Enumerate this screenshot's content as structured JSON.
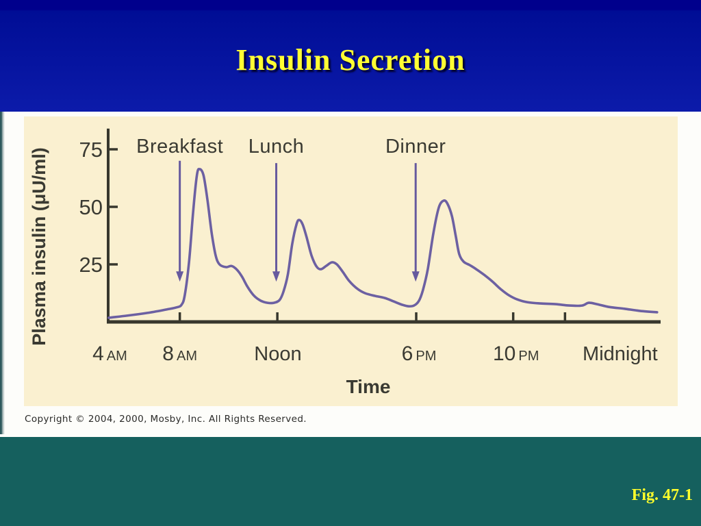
{
  "slide": {
    "title": "Insulin Secretion",
    "figure_ref": "Fig. 47-1",
    "copyright": "Copyright © 2004, 2000, Mosby, Inc. All Rights Reserved.",
    "colors": {
      "header_top": "#00008c",
      "header_bottom": "#0c1baa",
      "title_text": "#ffff33",
      "footer_teal": "#15605e",
      "fig_text": "#ffff2b",
      "panel_cream": "#faf0d0",
      "curve_purple": "#6c60a2",
      "arrow_purple": "#665a9e",
      "axis_dark": "#37372d",
      "label_dark": "#3a3a32"
    }
  },
  "chart_data": {
    "type": "line",
    "title": "",
    "xlabel": "Time",
    "ylabel": "Plasma insulin (μU/ml)",
    "ylim": [
      0,
      84
    ],
    "grid": false,
    "legend": "none",
    "y_axis": {
      "label": "Plasma insulin (μU/ml)",
      "ticks": [
        25,
        50,
        75
      ],
      "range": [
        0,
        84
      ]
    },
    "x_axis": {
      "label": "Time",
      "tick_positions": [
        0.13,
        0.307,
        0.559,
        0.735,
        0.829
      ],
      "tick_labels": [
        {
          "num": "4",
          "period": "AM",
          "pos": 0.003
        },
        {
          "num": "8",
          "period": "AM",
          "pos": 0.13
        },
        {
          "num": "Noon",
          "period": "",
          "pos": 0.308
        },
        {
          "num": "6",
          "period": "PM",
          "pos": 0.564
        },
        {
          "num": "10",
          "period": "PM",
          "pos": 0.74
        },
        {
          "num": "Midnight",
          "period": "",
          "pos": 0.929
        }
      ]
    },
    "annotations": [
      {
        "label": "Breakfast",
        "pos": 0.13,
        "arrow_top_value": 70,
        "arrow_tip_value": 17.5
      },
      {
        "label": "Lunch",
        "pos": 0.305,
        "arrow_top_value": 69,
        "arrow_tip_value": 17.5
      },
      {
        "label": "Dinner",
        "pos": 0.558,
        "arrow_top_value": 69,
        "arrow_tip_value": 17.5
      }
    ],
    "peaks": [
      {
        "meal": "Breakfast",
        "time_tick": "after 8 AM",
        "value": 66
      },
      {
        "meal": "Lunch",
        "time_tick": "after Noon",
        "value": 44
      },
      {
        "meal": "Dinner",
        "time_tick": "after 6 PM",
        "value": 53
      }
    ],
    "curve": [
      [
        0.001,
        1.8
      ],
      [
        0.034,
        2.7
      ],
      [
        0.071,
        3.9
      ],
      [
        0.106,
        5.4
      ],
      [
        0.124,
        6.3
      ],
      [
        0.133,
        7.4
      ],
      [
        0.139,
        11.6
      ],
      [
        0.147,
        26.5
      ],
      [
        0.154,
        47.3
      ],
      [
        0.161,
        63.7
      ],
      [
        0.166,
        66.4
      ],
      [
        0.173,
        63.7
      ],
      [
        0.18,
        53.3
      ],
      [
        0.188,
        38.4
      ],
      [
        0.195,
        28.9
      ],
      [
        0.202,
        25.0
      ],
      [
        0.214,
        23.8
      ],
      [
        0.224,
        24.3
      ],
      [
        0.234,
        22.6
      ],
      [
        0.243,
        19.6
      ],
      [
        0.253,
        15.2
      ],
      [
        0.265,
        11.3
      ],
      [
        0.277,
        9.2
      ],
      [
        0.289,
        8.3
      ],
      [
        0.301,
        8.3
      ],
      [
        0.311,
        9.5
      ],
      [
        0.318,
        13.1
      ],
      [
        0.326,
        20.5
      ],
      [
        0.334,
        33.9
      ],
      [
        0.342,
        42.6
      ],
      [
        0.347,
        44.3
      ],
      [
        0.353,
        42.3
      ],
      [
        0.36,
        36.9
      ],
      [
        0.369,
        28.9
      ],
      [
        0.378,
        24.1
      ],
      [
        0.386,
        22.9
      ],
      [
        0.396,
        24.4
      ],
      [
        0.406,
        25.9
      ],
      [
        0.415,
        25.0
      ],
      [
        0.425,
        22.0
      ],
      [
        0.437,
        17.9
      ],
      [
        0.451,
        14.6
      ],
      [
        0.466,
        12.5
      ],
      [
        0.484,
        11.3
      ],
      [
        0.502,
        10.4
      ],
      [
        0.518,
        8.9
      ],
      [
        0.534,
        7.4
      ],
      [
        0.545,
        6.8
      ],
      [
        0.555,
        7.1
      ],
      [
        0.564,
        9.2
      ],
      [
        0.571,
        13.7
      ],
      [
        0.58,
        22.9
      ],
      [
        0.59,
        38.4
      ],
      [
        0.6,
        49.7
      ],
      [
        0.609,
        52.7
      ],
      [
        0.616,
        51.2
      ],
      [
        0.624,
        45.8
      ],
      [
        0.631,
        36.9
      ],
      [
        0.637,
        29.5
      ],
      [
        0.645,
        26.2
      ],
      [
        0.656,
        24.7
      ],
      [
        0.668,
        22.9
      ],
      [
        0.682,
        20.5
      ],
      [
        0.697,
        17.6
      ],
      [
        0.712,
        14.3
      ],
      [
        0.727,
        11.6
      ],
      [
        0.742,
        9.8
      ],
      [
        0.76,
        8.6
      ],
      [
        0.785,
        8.0
      ],
      [
        0.812,
        7.7
      ],
      [
        0.837,
        7.1
      ],
      [
        0.86,
        7.1
      ],
      [
        0.872,
        8.3
      ],
      [
        0.887,
        7.7
      ],
      [
        0.909,
        6.5
      ],
      [
        0.937,
        5.7
      ],
      [
        0.965,
        4.8
      ],
      [
        0.996,
        4.2
      ]
    ]
  }
}
